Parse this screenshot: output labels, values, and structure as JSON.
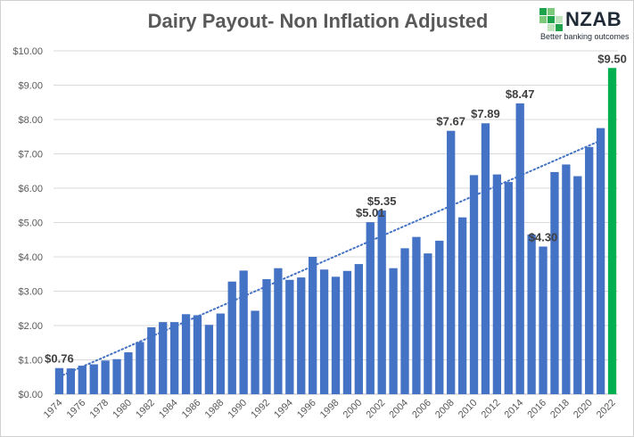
{
  "colors": {
    "bar": "#4472c4",
    "highlight_bar": "#00b050",
    "trendline": "#4472c4",
    "grid": "#d9d9d9",
    "title": "#595959",
    "logo_green": "#1ea24a"
  },
  "logo": {
    "name": "NZAB",
    "tagline": "Better banking outcomes"
  },
  "chart_data": {
    "type": "bar",
    "title": "Dairy Payout- Non Inflation Adjusted",
    "xlabel": "",
    "ylabel": "",
    "ylim": [
      0,
      10
    ],
    "yticks": [
      "$0.00",
      "$1.00",
      "$2.00",
      "$3.00",
      "$4.00",
      "$5.00",
      "$6.00",
      "$7.00",
      "$8.00",
      "$9.00",
      "$10.00"
    ],
    "grid": true,
    "trendline": "linear, dotted",
    "categories": [
      "1974",
      "1975",
      "1976",
      "1977",
      "1978",
      "1979",
      "1980",
      "1981",
      "1982",
      "1983",
      "1984",
      "1985",
      "1986",
      "1987",
      "1988",
      "1989",
      "1990",
      "1991",
      "1992",
      "1993",
      "1994",
      "1995",
      "1996",
      "1997",
      "1998",
      "1999",
      "2000",
      "2001",
      "2002",
      "2003",
      "2004",
      "2005",
      "2006",
      "2007",
      "2008",
      "2009",
      "2010",
      "2011",
      "2012",
      "2013",
      "2014",
      "2015",
      "2016",
      "2017",
      "2018",
      "2019",
      "2020",
      "2021",
      "2022"
    ],
    "xtick_labels": [
      "1974",
      "1976",
      "1978",
      "1980",
      "1982",
      "1984",
      "1986",
      "1988",
      "1990",
      "1992",
      "1994",
      "1996",
      "1998",
      "2000",
      "2002",
      "2004",
      "2006",
      "2008",
      "2010",
      "2012",
      "2014",
      "2016",
      "2018",
      "2020",
      "2022"
    ],
    "values": [
      0.76,
      0.75,
      0.83,
      0.87,
      0.98,
      1.02,
      1.22,
      1.52,
      1.95,
      2.1,
      2.1,
      2.33,
      2.3,
      2.02,
      2.35,
      3.28,
      3.6,
      2.43,
      3.35,
      3.67,
      3.33,
      3.4,
      4.0,
      3.63,
      3.42,
      3.59,
      3.79,
      5.01,
      5.35,
      3.67,
      4.25,
      4.58,
      4.1,
      4.47,
      7.67,
      5.15,
      6.38,
      7.89,
      6.4,
      6.18,
      8.47,
      4.65,
      4.3,
      6.47,
      6.69,
      6.35,
      7.2,
      7.75,
      9.5
    ],
    "highlight_index": 48,
    "data_labels": [
      {
        "index": 0,
        "text": "$0.76"
      },
      {
        "index": 27,
        "text": "$5.01"
      },
      {
        "index": 28,
        "text": "$5.35"
      },
      {
        "index": 34,
        "text": "$7.67"
      },
      {
        "index": 37,
        "text": "$7.89"
      },
      {
        "index": 40,
        "text": "$8.47"
      },
      {
        "index": 42,
        "text": "$4.30"
      },
      {
        "index": 48,
        "text": "$9.50"
      }
    ]
  }
}
